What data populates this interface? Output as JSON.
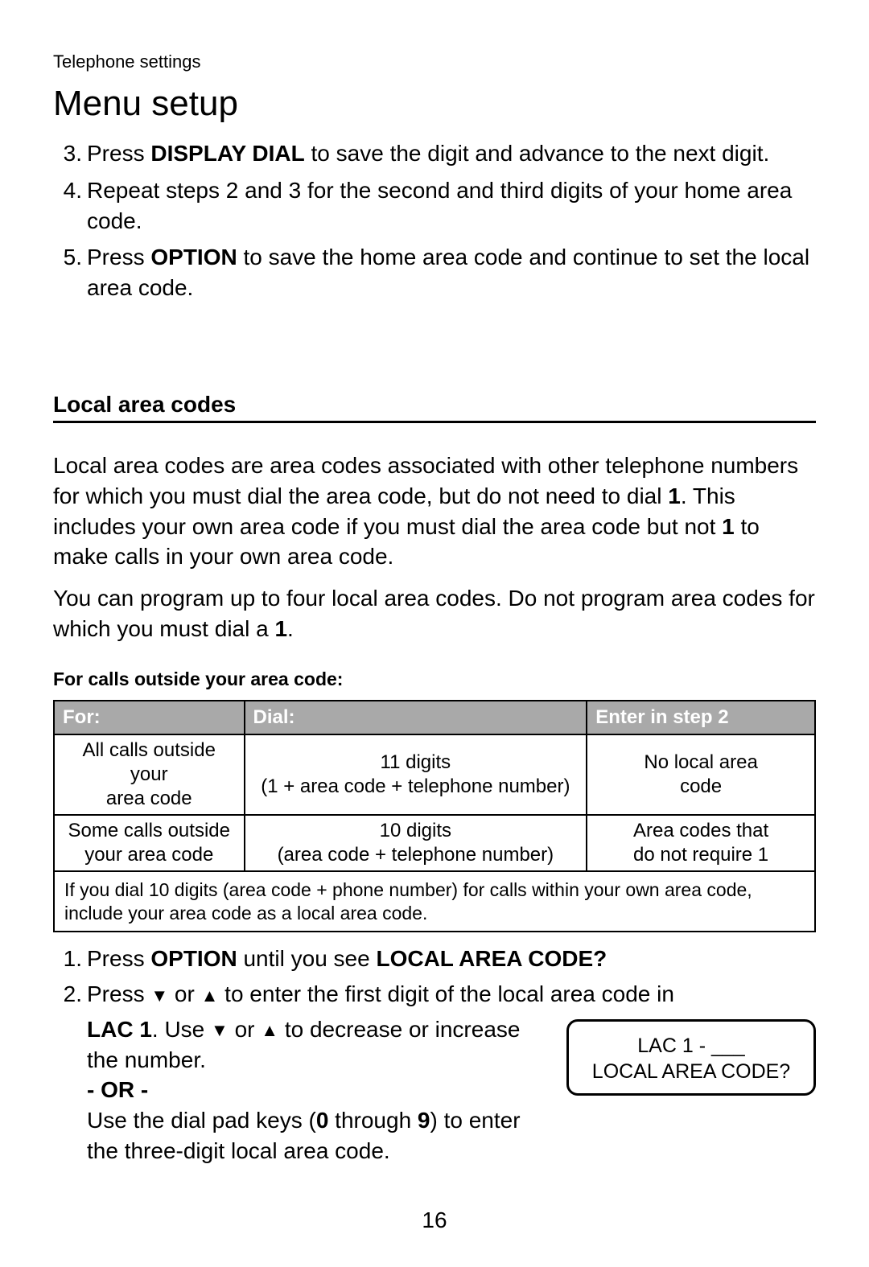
{
  "breadcrumb": "Telephone settings",
  "title": "Menu setup",
  "steps_a": [
    {
      "n": "3.",
      "pre": "Press ",
      "bold": "DISPLAY DIAL",
      "post": " to save the digit and advance to the next digit."
    },
    {
      "n": "4.",
      "pre": "Repeat steps 2 and 3 for the second and third digits of your home area code.",
      "bold": "",
      "post": ""
    },
    {
      "n": "5.",
      "pre": "Press ",
      "bold": "OPTION",
      "post": " to save the home area code and continue to set the local area code."
    }
  ],
  "section_heading": "Local area codes",
  "para1_pre": "Local area codes are area codes associated with other telephone numbers for which you must dial the area code, but do not need to dial ",
  "para1_b1": "1",
  "para1_mid": ". This includes your own area code if you must dial the area code but not ",
  "para1_b2": "1",
  "para1_post": " to make calls in your own area code.",
  "para2_pre": "You can program up to four local area codes. Do not program area codes for which you must dial a ",
  "para2_b": "1",
  "para2_post": ".",
  "table_caption": "For calls outside your area code:",
  "th1": "For:",
  "th2": "Dial:",
  "th3": "Enter in step 2",
  "r1c1a": "All calls outside your",
  "r1c1b": "area code",
  "r1c2a": "11 digits",
  "r1c2b": "(1 + area code + telephone number)",
  "r1c3a": "No local area",
  "r1c3b": "code",
  "r2c1a": "Some calls outside",
  "r2c1b": "your area code",
  "r2c2a": "10 digits",
  "r2c2b": "(area code + telephone number)",
  "r2c3a": "Area codes that",
  "r2c3b": "do not require 1",
  "footnote": "If you dial 10 digits (area code + phone number) for calls within your own area code, include your area code as a local area code.",
  "s1_n": "1.",
  "s1_pre": "Press ",
  "s1_b1": "OPTION",
  "s1_mid": " until you see ",
  "s1_b2": "LOCAL AREA CODE?",
  "s2_n": "2.",
  "s2_line1_pre": "Press ",
  "s2_line1_mid": " or ",
  "s2_line1_post": " to enter the first digit of the local area code in",
  "s2_sub_b": "LAC 1",
  "s2_sub_pre": ". Use ",
  "s2_sub_mid": " or ",
  "s2_sub_post": " to decrease or increase the number.",
  "or_label": "- OR -",
  "s2_alt_pre": "Use the dial pad keys (",
  "s2_alt_b1": "0",
  "s2_alt_mid": " through ",
  "s2_alt_b2": "9",
  "s2_alt_post": ") to enter the three-digit local area code.",
  "display_line1": "LAC 1 - ___",
  "display_line2": "LOCAL AREA CODE?",
  "tri_down": "▼",
  "tri_up": "▲",
  "page_number": "16"
}
